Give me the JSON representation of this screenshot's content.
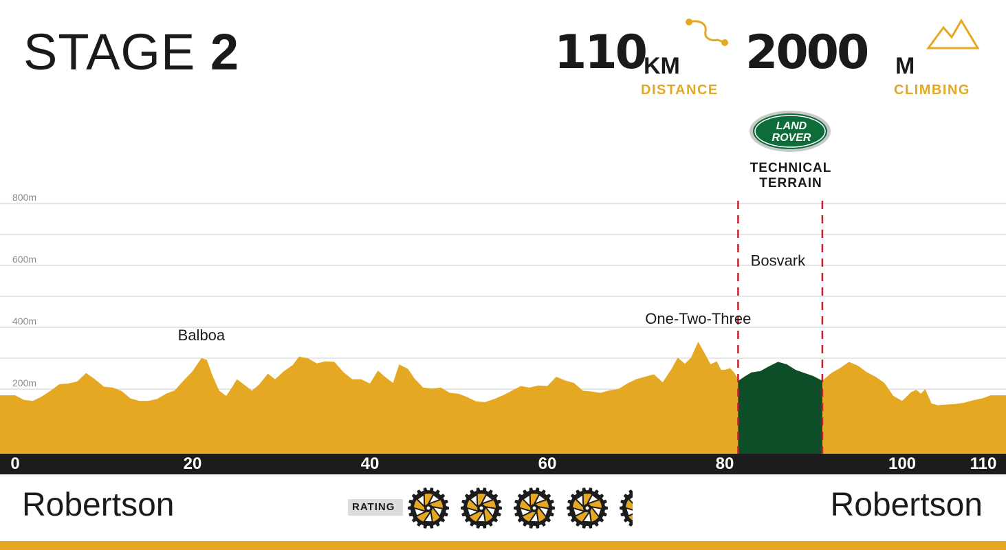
{
  "header": {
    "stage_prefix": "STAGE",
    "stage_number": "2",
    "distance_value": "110",
    "distance_unit": "KM",
    "distance_label": "DISTANCE",
    "climbing_value": "2000",
    "climbing_unit": "M",
    "climbing_label": "CLIMBING"
  },
  "sponsor": {
    "logo_line1": "LAND",
    "logo_line2": "ROVER",
    "section_line1": "TECHNICAL",
    "section_line2": "TERRAIN",
    "section_start_km": 81.5,
    "section_end_km": 91
  },
  "colors": {
    "profile": "#e5a823",
    "technical": "#0d4d28",
    "marker": "#c8202f",
    "axis_bar": "#1c1c1c",
    "grid": "#d7d7d7"
  },
  "chart_data": {
    "type": "area",
    "xlabel": "",
    "ylabel": "",
    "xlim": [
      0,
      110
    ],
    "ylim": [
      0,
      800
    ],
    "y_ticks": [
      200,
      400,
      600,
      800
    ],
    "y_tick_labels": [
      "200m",
      "400m",
      "600m",
      "800m"
    ],
    "x_ticks": [
      0,
      20,
      40,
      60,
      80,
      100,
      110
    ],
    "x_tick_labels": [
      "0",
      "20",
      "40",
      "60",
      "80",
      "100",
      "110"
    ],
    "grid": true,
    "elevation_profile": [
      [
        0,
        180
      ],
      [
        1,
        165
      ],
      [
        2,
        162
      ],
      [
        3,
        176
      ],
      [
        4,
        195
      ],
      [
        5,
        216
      ],
      [
        6,
        218
      ],
      [
        7,
        225
      ],
      [
        8,
        252
      ],
      [
        9,
        232
      ],
      [
        10,
        208
      ],
      [
        11,
        205
      ],
      [
        12,
        194
      ],
      [
        13,
        170
      ],
      [
        14,
        162
      ],
      [
        15,
        162
      ],
      [
        16,
        168
      ],
      [
        17,
        185
      ],
      [
        18,
        196
      ],
      [
        19,
        228
      ],
      [
        20,
        258
      ],
      [
        21,
        300
      ],
      [
        21.6,
        295
      ],
      [
        22.3,
        240
      ],
      [
        23,
        195
      ],
      [
        23.8,
        178
      ],
      [
        24.5,
        208
      ],
      [
        25,
        232
      ],
      [
        25.8,
        215
      ],
      [
        26.7,
        195
      ],
      [
        27.5,
        215
      ],
      [
        28.5,
        250
      ],
      [
        29.3,
        232
      ],
      [
        30.3,
        258
      ],
      [
        31.3,
        278
      ],
      [
        32,
        305
      ],
      [
        33,
        300
      ],
      [
        34,
        283
      ],
      [
        35,
        290
      ],
      [
        36,
        288
      ],
      [
        37,
        255
      ],
      [
        38,
        232
      ],
      [
        39,
        232
      ],
      [
        40,
        218
      ],
      [
        40.9,
        260
      ],
      [
        41.6,
        242
      ],
      [
        42.6,
        220
      ],
      [
        43.3,
        280
      ],
      [
        44.3,
        265
      ],
      [
        45,
        235
      ],
      [
        46,
        205
      ],
      [
        47,
        202
      ],
      [
        48,
        205
      ],
      [
        49,
        188
      ],
      [
        50,
        185
      ],
      [
        51,
        174
      ],
      [
        52,
        160
      ],
      [
        53,
        158
      ],
      [
        54,
        168
      ],
      [
        55,
        180
      ],
      [
        56,
        195
      ],
      [
        57,
        210
      ],
      [
        58,
        205
      ],
      [
        59,
        212
      ],
      [
        60,
        210
      ],
      [
        61,
        240
      ],
      [
        62,
        228
      ],
      [
        63,
        220
      ],
      [
        64,
        195
      ],
      [
        65,
        192
      ],
      [
        66,
        188
      ],
      [
        67,
        196
      ],
      [
        68,
        200
      ],
      [
        69,
        218
      ],
      [
        70,
        232
      ],
      [
        71,
        240
      ],
      [
        72,
        248
      ],
      [
        73,
        222
      ],
      [
        74,
        265
      ],
      [
        74.7,
        302
      ],
      [
        75.5,
        282
      ],
      [
        76.2,
        302
      ],
      [
        77,
        353
      ],
      [
        77.7,
        318
      ],
      [
        78.4,
        280
      ],
      [
        79.1,
        290
      ],
      [
        79.6,
        262
      ],
      [
        80.1,
        263
      ],
      [
        80.6,
        268
      ],
      [
        81.1,
        252
      ],
      [
        81.6,
        228
      ],
      [
        82.2,
        240
      ],
      [
        83,
        254
      ],
      [
        84,
        258
      ],
      [
        85,
        274
      ],
      [
        86,
        288
      ],
      [
        87,
        280
      ],
      [
        88,
        262
      ],
      [
        89,
        252
      ],
      [
        90,
        242
      ],
      [
        91,
        227
      ],
      [
        92,
        252
      ],
      [
        93,
        268
      ],
      [
        94,
        288
      ],
      [
        95,
        276
      ],
      [
        96,
        255
      ],
      [
        97,
        240
      ],
      [
        98,
        220
      ],
      [
        99,
        178
      ],
      [
        100,
        162
      ],
      [
        101,
        190
      ],
      [
        101.6,
        198
      ],
      [
        102.1,
        185
      ],
      [
        102.6,
        200
      ],
      [
        103.3,
        154
      ],
      [
        104,
        148
      ],
      [
        105,
        150
      ],
      [
        106,
        152
      ],
      [
        107,
        156
      ],
      [
        108,
        164
      ],
      [
        109,
        170
      ],
      [
        110,
        180
      ]
    ],
    "climbs": [
      {
        "name": "Balboa",
        "km": 21
      },
      {
        "name": "One-Two-Three",
        "km": 77
      },
      {
        "name": "Bosvark",
        "km": 86
      }
    ]
  },
  "route": {
    "start": "Robertson",
    "finish": "Robertson",
    "rating_label": "RATING",
    "rating_value": 4.5,
    "rating_max": 5
  }
}
